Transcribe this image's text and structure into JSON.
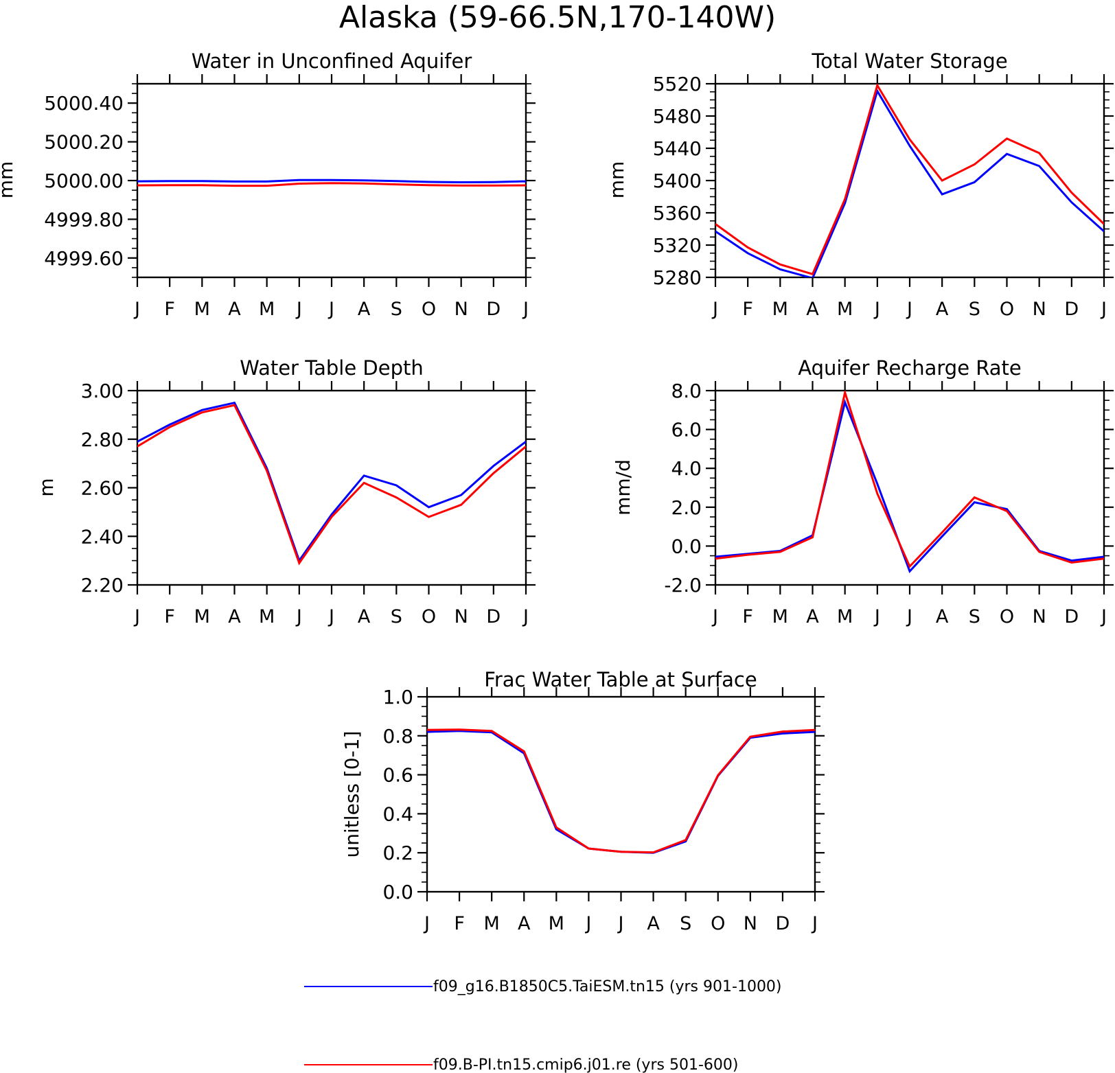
{
  "figure_title": "Alaska (59-66.5N,170-140W)",
  "colors": {
    "series_1": "#0000ff",
    "series_2": "#ff0000",
    "axis": "#000000"
  },
  "legend": [
    {
      "label": "f09_g16.B1850C5.TaiESM.tn15 (yrs 901-1000)",
      "color": "#0000ff"
    },
    {
      "label": "f09.B-PI.tn15.cmip6.j01.re (yrs 501-600)",
      "color": "#ff0000"
    }
  ],
  "chart_data": [
    {
      "type": "line",
      "title": "Water in Unconfined Aquifer",
      "ylabel": "mm",
      "categories": [
        "J",
        "F",
        "M",
        "A",
        "M",
        "J",
        "J",
        "A",
        "S",
        "O",
        "N",
        "D",
        "J"
      ],
      "ylim": [
        4999.5,
        5000.5
      ],
      "yticks": [
        4999.6,
        4999.8,
        5000.0,
        5000.2,
        5000.4
      ],
      "ytick_labels": [
        "4999.60",
        "4999.80",
        "5000.00",
        "5000.20",
        "5000.40"
      ],
      "yminor": 0.05,
      "series": [
        {
          "values": [
            4999.996,
            4999.997,
            4999.997,
            4999.995,
            4999.995,
            5000.003,
            5000.003,
            5000.001,
            4999.997,
            4999.993,
            4999.991,
            4999.992,
            4999.996
          ]
        },
        {
          "values": [
            4999.975,
            4999.976,
            4999.976,
            4999.973,
            4999.973,
            4999.984,
            4999.987,
            4999.985,
            4999.98,
            4999.976,
            4999.974,
            4999.974,
            4999.975
          ]
        }
      ]
    },
    {
      "type": "line",
      "title": "Total Water Storage",
      "ylabel": "mm",
      "categories": [
        "J",
        "F",
        "M",
        "A",
        "M",
        "J",
        "J",
        "A",
        "S",
        "O",
        "N",
        "D",
        "J"
      ],
      "ylim": [
        5280,
        5520
      ],
      "yticks": [
        5280,
        5320,
        5360,
        5400,
        5440,
        5480,
        5520
      ],
      "ytick_labels": [
        "5280",
        "5320",
        "5360",
        "5400",
        "5440",
        "5480",
        "5520"
      ],
      "yminor": 10,
      "series": [
        {
          "values": [
            5337,
            5310,
            5290,
            5279,
            5372,
            5511,
            5443,
            5383,
            5398,
            5433,
            5418,
            5373,
            5337
          ]
        },
        {
          "values": [
            5346,
            5317,
            5296,
            5284,
            5377,
            5518,
            5451,
            5400,
            5420,
            5452,
            5434,
            5385,
            5346
          ]
        }
      ]
    },
    {
      "type": "line",
      "title": "Water Table Depth",
      "ylabel": "m",
      "categories": [
        "J",
        "F",
        "M",
        "A",
        "M",
        "J",
        "J",
        "A",
        "S",
        "O",
        "N",
        "D",
        "J"
      ],
      "ylim": [
        2.2,
        3.0
      ],
      "yticks": [
        2.2,
        2.4,
        2.6,
        2.8,
        3.0
      ],
      "ytick_labels": [
        "2.20",
        "2.40",
        "2.60",
        "2.80",
        "3.00"
      ],
      "yminor": 0.05,
      "series": [
        {
          "values": [
            2.79,
            2.86,
            2.92,
            2.95,
            2.68,
            2.3,
            2.49,
            2.65,
            2.61,
            2.52,
            2.57,
            2.69,
            2.79
          ]
        },
        {
          "values": [
            2.77,
            2.85,
            2.91,
            2.94,
            2.67,
            2.29,
            2.48,
            2.62,
            2.56,
            2.48,
            2.53,
            2.66,
            2.77
          ]
        }
      ]
    },
    {
      "type": "line",
      "title": "Aquifer Recharge Rate",
      "ylabel": "mm/d",
      "categories": [
        "J",
        "F",
        "M",
        "A",
        "M",
        "J",
        "J",
        "A",
        "S",
        "O",
        "N",
        "D",
        "J"
      ],
      "ylim": [
        -2.0,
        8.0
      ],
      "yticks": [
        -2,
        0,
        2,
        4,
        6,
        8
      ],
      "ytick_labels": [
        "-2.0",
        "0.0",
        "2.0",
        "4.0",
        "6.0",
        "8.0"
      ],
      "yminor": 0.5,
      "series": [
        {
          "values": [
            -0.55,
            -0.4,
            -0.25,
            0.55,
            7.4,
            3.2,
            -1.3,
            0.5,
            2.25,
            1.9,
            -0.25,
            -0.75,
            -0.55
          ]
        },
        {
          "values": [
            -0.65,
            -0.45,
            -0.3,
            0.45,
            7.9,
            2.7,
            -1.05,
            0.7,
            2.5,
            1.8,
            -0.3,
            -0.85,
            -0.65
          ]
        }
      ]
    },
    {
      "type": "line",
      "title": "Frac Water Table at Surface",
      "ylabel": "unitless [0-1]",
      "categories": [
        "J",
        "F",
        "M",
        "A",
        "M",
        "J",
        "J",
        "A",
        "S",
        "O",
        "N",
        "D",
        "J"
      ],
      "ylim": [
        0.0,
        1.0
      ],
      "yticks": [
        0.0,
        0.2,
        0.4,
        0.6,
        0.8,
        1.0
      ],
      "ytick_labels": [
        "0.0",
        "0.2",
        "0.4",
        "0.6",
        "0.8",
        "1.0"
      ],
      "yminor": 0.05,
      "series": [
        {
          "values": [
            0.82,
            0.825,
            0.818,
            0.71,
            0.32,
            0.222,
            0.205,
            0.2,
            0.258,
            0.595,
            0.79,
            0.812,
            0.82
          ]
        },
        {
          "values": [
            0.83,
            0.832,
            0.825,
            0.72,
            0.33,
            0.222,
            0.205,
            0.202,
            0.265,
            0.598,
            0.795,
            0.822,
            0.83
          ]
        }
      ]
    }
  ]
}
